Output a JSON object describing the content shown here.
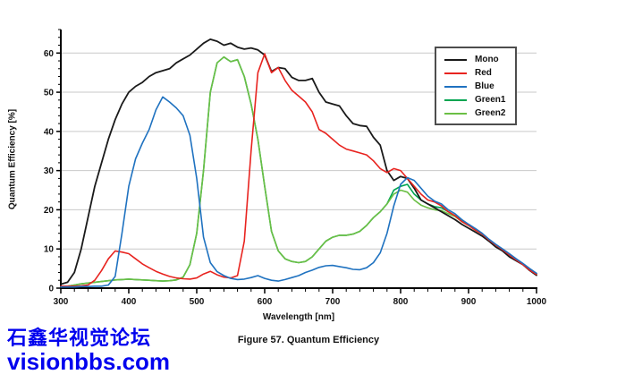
{
  "figure": {
    "caption": "Figure 57. Quantum Efficiency"
  },
  "watermark": {
    "line1": "石鑫华视觉论坛",
    "line2": "visionbbs.com",
    "color": "#0202ee"
  },
  "chart_data": {
    "type": "line",
    "title": "",
    "xlabel": "Wavelength [nm]",
    "ylabel": "Quantum Efficiency [%]",
    "xlim": [
      300,
      1000
    ],
    "ylim": [
      0,
      66
    ],
    "x_ticks": [
      300,
      400,
      500,
      600,
      700,
      800,
      900,
      1000
    ],
    "y_ticks": [
      0,
      10,
      20,
      30,
      40,
      50,
      60
    ],
    "x_minor_step": 20,
    "y_minor_step": 2,
    "grid": "horizontal",
    "grid_color": "#c9c9c9",
    "axis_color": "#000000",
    "legend_position": "top-right",
    "x": [
      300,
      310,
      320,
      330,
      340,
      350,
      360,
      370,
      380,
      390,
      400,
      410,
      420,
      430,
      440,
      450,
      460,
      470,
      480,
      490,
      500,
      510,
      520,
      530,
      540,
      550,
      560,
      570,
      580,
      590,
      600,
      610,
      620,
      630,
      640,
      650,
      660,
      670,
      680,
      690,
      700,
      710,
      720,
      730,
      740,
      750,
      760,
      770,
      780,
      790,
      800,
      810,
      820,
      830,
      840,
      850,
      860,
      870,
      880,
      890,
      900,
      910,
      920,
      930,
      940,
      950,
      960,
      970,
      980,
      990,
      1000
    ],
    "series": [
      {
        "name": "Mono",
        "color": "#1a1a1a",
        "values": [
          1,
          1.5,
          4,
          10,
          18,
          26,
          32,
          38,
          43,
          47,
          50,
          51.5,
          52.5,
          54,
          55,
          55.5,
          56,
          57.5,
          58.5,
          59.5,
          61,
          62.5,
          63.5,
          63,
          62,
          62.5,
          61.5,
          61,
          61.3,
          60.8,
          59.5,
          55.3,
          56.3,
          56,
          53.8,
          53,
          53,
          53.5,
          50,
          47.5,
          47,
          46.5,
          44,
          42,
          41.5,
          41.3,
          38.5,
          36.5,
          30,
          27.5,
          28.5,
          28,
          25.5,
          22.5,
          21.5,
          20.5,
          19.5,
          18.5,
          17.5,
          16.3,
          15.3,
          14.3,
          13.3,
          12,
          10.5,
          9.5,
          8,
          7,
          6,
          4.5,
          3.3
        ]
      },
      {
        "name": "Red",
        "color": "#e8231f",
        "values": [
          0.5,
          0.5,
          0.5,
          0.6,
          0.8,
          2,
          4.5,
          7.5,
          9.5,
          9.2,
          8.8,
          7.5,
          6.2,
          5.2,
          4.3,
          3.6,
          3,
          2.6,
          2.4,
          2.3,
          2.6,
          3.6,
          4.3,
          3.4,
          2.8,
          2.6,
          3.2,
          12,
          35,
          55,
          59.8,
          55,
          56.3,
          53,
          50.5,
          49,
          47.5,
          45,
          40.5,
          39.5,
          38,
          36.5,
          35.5,
          35,
          34.5,
          34,
          32.5,
          30.5,
          29.5,
          30.5,
          30,
          28,
          26,
          24,
          22.5,
          22,
          21,
          19.5,
          18.5,
          17,
          16,
          14.8,
          13.8,
          12.3,
          11,
          9.8,
          8.5,
          7.2,
          6,
          4.6,
          3.5
        ]
      },
      {
        "name": "Blue",
        "color": "#1f72c0",
        "values": [
          0.3,
          0.3,
          0.3,
          0.4,
          0.4,
          0.5,
          0.5,
          0.8,
          3,
          14,
          26,
          33,
          37,
          40.5,
          45.5,
          48.8,
          47.5,
          46,
          44,
          39,
          28,
          13,
          6.5,
          4.2,
          3.2,
          2.5,
          2.2,
          2.3,
          2.7,
          3.2,
          2.5,
          2,
          1.8,
          2.2,
          2.7,
          3.2,
          4,
          4.6,
          5.3,
          5.7,
          5.8,
          5.5,
          5.2,
          4.8,
          4.7,
          5.2,
          6.5,
          9,
          14,
          21,
          26.5,
          28.2,
          27.5,
          25.5,
          23.5,
          22.2,
          21.5,
          20,
          19,
          17.5,
          16.3,
          15.2,
          14,
          12.5,
          11.2,
          10,
          8.8,
          7.5,
          6.3,
          5,
          3.8
        ]
      },
      {
        "name": "Green1",
        "color": "#00a551",
        "values": [
          0.3,
          0.5,
          0.8,
          1.1,
          1.3,
          1.5,
          1.7,
          1.9,
          2.1,
          2.2,
          2.3,
          2.2,
          2.1,
          2,
          1.9,
          1.8,
          1.9,
          2.1,
          2.8,
          6,
          14,
          30,
          50,
          57.5,
          59,
          57.8,
          58.3,
          54,
          47,
          38,
          26,
          14.5,
          9.5,
          7.5,
          6.8,
          6.5,
          6.8,
          8,
          10,
          12,
          13,
          13.5,
          13.5,
          13.8,
          14.5,
          16,
          18,
          19.5,
          21.5,
          25,
          26,
          26.5,
          24,
          22.5,
          21.5,
          20.8,
          20.5,
          19.5,
          18.5,
          17.2,
          16.1,
          14.9,
          13.9,
          12.3,
          11.1,
          9.9,
          8.6,
          7.4,
          6.2,
          4.9,
          3.7
        ]
      },
      {
        "name": "Green2",
        "color": "#6bbf45",
        "values": [
          0.3,
          0.5,
          0.8,
          1.1,
          1.3,
          1.5,
          1.7,
          1.9,
          2.1,
          2.2,
          2.3,
          2.2,
          2.1,
          2,
          1.9,
          1.8,
          1.9,
          2.1,
          2.8,
          6,
          14,
          30,
          50,
          57.5,
          59,
          57.8,
          58.3,
          54,
          47,
          38,
          26,
          14.5,
          9.5,
          7.5,
          6.8,
          6.5,
          6.8,
          8,
          10,
          12,
          13,
          13.5,
          13.5,
          13.8,
          14.5,
          16,
          18,
          19.5,
          21.5,
          24,
          25,
          24.5,
          22.5,
          21.2,
          20.5,
          20,
          19.8,
          19,
          18.3,
          17,
          16,
          14.8,
          13.8,
          12.2,
          11,
          9.8,
          8.5,
          7.3,
          6.1,
          4.8,
          3.6
        ]
      }
    ]
  }
}
